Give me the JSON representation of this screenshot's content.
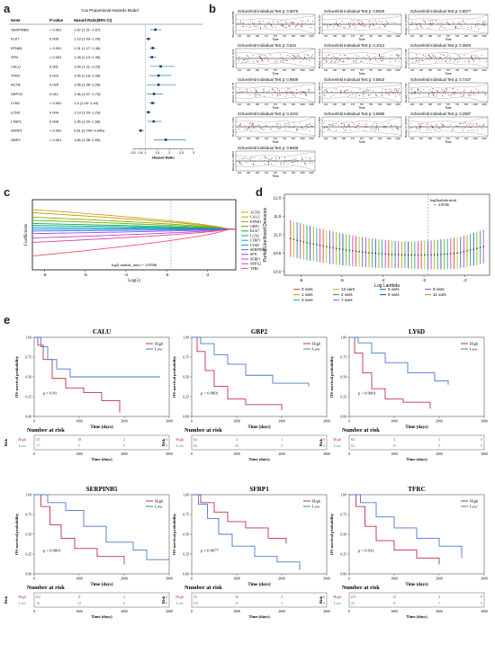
{
  "panels": {
    "a": "a",
    "b": "b",
    "c": "c",
    "d": "d",
    "e": "e"
  },
  "panel_a": {
    "title": "Cox Proportional Hazards Model",
    "headers": {
      "gene": "Gene",
      "p": "P-value",
      "hr": "Hazard Ratio(95% CI)"
    },
    "rows": [
      {
        "gene": "SERPINB5",
        "p": "< 0.001",
        "hr": "1.42 (1.21~1.67)",
        "est": 1.42,
        "lo": 1.21,
        "hi": 1.67
      },
      {
        "gene": "KLK7",
        "p": "0.006",
        "hr": "1.13 (1.03~1.24)",
        "est": 1.13,
        "lo": 1.03,
        "hi": 1.24
      },
      {
        "gene": "EFNB1",
        "p": "< 0.001",
        "hr": "1.31 (1.17~1.46)",
        "est": 1.31,
        "lo": 1.17,
        "hi": 1.46
      },
      {
        "gene": "SFN",
        "p": "< 0.001",
        "hr": "1.28 (1.13~1.45)",
        "est": 1.28,
        "lo": 1.13,
        "hi": 1.45
      },
      {
        "gene": "CALU",
        "p": "0.001",
        "hr": "1.64 (1.21~2.23)",
        "est": 1.64,
        "lo": 1.21,
        "hi": 2.23
      },
      {
        "gene": "TFRC",
        "p": "0.003",
        "hr": "1.55 (1.16~2.08)",
        "est": 1.55,
        "lo": 1.16,
        "hi": 2.08
      },
      {
        "gene": "ACTB",
        "p": "0.025",
        "hr": "1.55 (1.06~2.26)",
        "est": 1.55,
        "lo": 1.06,
        "hi": 2.26
      },
      {
        "gene": "SRPX2",
        "p": "0.011",
        "hr": "1.36 (1.07~1.73)",
        "est": 1.36,
        "lo": 1.07,
        "hi": 1.73
      },
      {
        "gene": "LY6D",
        "p": "< 0.001",
        "hr": "1.3 (1.16~1.44)",
        "est": 1.3,
        "lo": 1.16,
        "hi": 1.44
      },
      {
        "gene": "LCN2",
        "p": "0.009",
        "hr": "1.13 (1.03~1.23)",
        "est": 1.13,
        "lo": 1.03,
        "hi": 1.23
      },
      {
        "gene": "LTBP1",
        "p": "0.006",
        "hr": "1.35 (1.09~1.68)",
        "est": 1.35,
        "lo": 1.09,
        "hi": 1.68
      },
      {
        "gene": "SFRP1",
        "p": "< 0.001",
        "hr": "0.81 (0.709~0.946)",
        "est": 0.81,
        "lo": 0.709,
        "hi": 0.946
      },
      {
        "gene": "GBP2",
        "p": "< 0.001",
        "hr": "1.85 (1.36~2.69)",
        "est": 1.85,
        "lo": 1.36,
        "hi": 2.69
      }
    ],
    "xticks": [
      "0.5",
      "0.8",
      "1",
      "1.5",
      "2",
      "2.5",
      "3"
    ],
    "xlabel": "Hazard Ratio"
  },
  "panel_b": {
    "title_prefix": "Schoenfeld Individual Test p:",
    "xlabel": "Time",
    "xticks": [
      "120",
      "230",
      "380",
      "470",
      "570",
      "760",
      "930",
      "1300",
      "2100"
    ],
    "plots": [
      {
        "p": "0.5676",
        "ylabel": "Beta(t) for SERPINB5"
      },
      {
        "p": "0.5929",
        "ylabel": "Beta(t) for KLK7"
      },
      {
        "p": "0.6577",
        "ylabel": "Beta(t) for EFNB1"
      },
      {
        "p": "0.615",
        "ylabel": "Beta(t) for SFN"
      },
      {
        "p": "0.1012",
        "ylabel": "Beta(t) for CALU"
      },
      {
        "p": "0.3603",
        "ylabel": "Beta(t) for TFRC"
      },
      {
        "p": "0.9609",
        "ylabel": "Beta(t) for ACTB"
      },
      {
        "p": "0.5915",
        "ylabel": "Beta(t) for SRPX2"
      },
      {
        "p": "0.7107",
        "ylabel": "Beta(t) for LY6D"
      },
      {
        "p": "0.4342",
        "ylabel": "Beta(t) for LCN2"
      },
      {
        "p": "0.5886",
        "ylabel": "Beta(t) for LTBP1"
      },
      {
        "p": "0.2987",
        "ylabel": "Beta(t) for SFRP1"
      },
      {
        "p": "0.9509",
        "ylabel": "Beta(t) for GBP2"
      }
    ]
  },
  "panel_c": {
    "ylabel": "Coefficients",
    "xlabel": "Log(λ)",
    "xticks": [
      "-6",
      "-5",
      "-4",
      "-3",
      "-2"
    ],
    "annotation": "log(Lambda_min) = -2.8946",
    "legend": [
      {
        "name": "ACTB",
        "color": "#d4a017"
      },
      {
        "name": "CALU",
        "color": "#b8a000"
      },
      {
        "name": "EFNB1",
        "color": "#8aa800"
      },
      {
        "name": "GBP2",
        "color": "#5ab000"
      },
      {
        "name": "KLK7",
        "color": "#10b040"
      },
      {
        "name": "LCN2",
        "color": "#00b090"
      },
      {
        "name": "LTBP1",
        "color": "#00a8c0"
      },
      {
        "name": "LY6D",
        "color": "#1090e0"
      },
      {
        "name": "SERPINB5",
        "color": "#5070f0"
      },
      {
        "name": "SFN",
        "color": "#9050e8"
      },
      {
        "name": "SFRP1",
        "color": "#c040d0"
      },
      {
        "name": "SRPX2",
        "color": "#e040a0"
      },
      {
        "name": "TFRC",
        "color": "#f05070"
      }
    ]
  },
  "panel_d": {
    "ylabel": "Partial Likelihood Deviance",
    "xlabel": "Log Lambda",
    "yticks": [
      "10.0",
      "10.5",
      "11.0",
      "11.5",
      "12.0"
    ],
    "xticks": [
      "-6",
      "-5",
      "-4",
      "-3",
      "-2"
    ],
    "annotation": "log(lambda.min)\n= -2.8946",
    "legend": [
      {
        "label": "0 vars",
        "color": "#e74c3c"
      },
      {
        "label": "12 vars",
        "color": "#c0c020"
      },
      {
        "label": "5 vars",
        "color": "#2c7fb8"
      },
      {
        "label": "9 vars",
        "color": "#b04ac8"
      },
      {
        "label": "1 vars",
        "color": "#d0a000"
      },
      {
        "label": "2 vars",
        "color": "#20b060"
      },
      {
        "label": "6 vars",
        "color": "#3050e0"
      },
      {
        "label": "11 vars",
        "color": "#90b000"
      },
      {
        "label": "3 vars",
        "color": "#20b0a0"
      },
      {
        "label": "7 vars",
        "color": "#e040c0"
      }
    ]
  },
  "panel_e": {
    "ylabel": "OS survival probability",
    "xlabel": "Time (days)",
    "yticks": [
      "0.00",
      "0.25",
      "0.50",
      "0.75",
      "1.00"
    ],
    "xticks": [
      "0",
      "1000",
      "2000",
      "3000"
    ],
    "risk_title": "Number at risk",
    "risk_label": "Risk",
    "legend": {
      "high": "High",
      "low": "Low"
    },
    "colors": {
      "high": "#c0304a",
      "low": "#4a78d0"
    },
    "plots": [
      {
        "title": "CALU",
        "p": "p = 0.01",
        "high_risk": [
          "111",
          "18",
          "2",
          "0"
        ],
        "low_risk": [
          "17",
          "5",
          "0",
          "0"
        ],
        "high": [
          [
            0,
            1
          ],
          [
            80,
            0.9
          ],
          [
            200,
            0.72
          ],
          [
            400,
            0.48
          ],
          [
            700,
            0.36
          ],
          [
            1100,
            0.3
          ],
          [
            1500,
            0.2
          ],
          [
            1900,
            0.05
          ]
        ],
        "low": [
          [
            0,
            1
          ],
          [
            150,
            0.88
          ],
          [
            300,
            0.72
          ],
          [
            500,
            0.6
          ],
          [
            800,
            0.5
          ],
          [
            2800,
            0.5
          ]
        ]
      },
      {
        "title": "GBP2",
        "p": "p < 0.0001",
        "high_risk": [
          "62",
          "3",
          "1",
          "0"
        ],
        "low_risk": [
          "66",
          "20",
          "3",
          "0"
        ],
        "high": [
          [
            0,
            1
          ],
          [
            120,
            0.82
          ],
          [
            300,
            0.58
          ],
          [
            500,
            0.38
          ],
          [
            800,
            0.22
          ],
          [
            1200,
            0.15
          ],
          [
            2000,
            0.08
          ]
        ],
        "low": [
          [
            0,
            1
          ],
          [
            200,
            0.92
          ],
          [
            500,
            0.78
          ],
          [
            800,
            0.66
          ],
          [
            1200,
            0.52
          ],
          [
            1800,
            0.42
          ],
          [
            2600,
            0.38
          ]
        ]
      },
      {
        "title": "LY6D",
        "p": "p < 0.0001",
        "high_risk": [
          "65",
          "4",
          "2",
          "0"
        ],
        "low_risk": [
          "63",
          "19",
          "0",
          "0"
        ],
        "high": [
          [
            0,
            1
          ],
          [
            120,
            0.8
          ],
          [
            300,
            0.55
          ],
          [
            500,
            0.35
          ],
          [
            800,
            0.22
          ],
          [
            1200,
            0.18
          ],
          [
            1800,
            0.1
          ]
        ],
        "low": [
          [
            0,
            1
          ],
          [
            200,
            0.93
          ],
          [
            500,
            0.8
          ],
          [
            800,
            0.68
          ],
          [
            1300,
            0.55
          ],
          [
            1900,
            0.45
          ],
          [
            2200,
            0.4
          ]
        ]
      },
      {
        "title": "SERPINB5",
        "p": "p < 0.0001",
        "high_risk": [
          "112",
          "11",
          "2",
          "0"
        ],
        "low_risk": [
          "16",
          "12",
          "0",
          "0"
        ],
        "high": [
          [
            0,
            1
          ],
          [
            150,
            0.85
          ],
          [
            350,
            0.62
          ],
          [
            600,
            0.45
          ],
          [
            900,
            0.32
          ],
          [
            1400,
            0.22
          ],
          [
            2000,
            0.12
          ]
        ],
        "low": [
          [
            0,
            1
          ],
          [
            300,
            0.9
          ],
          [
            700,
            0.8
          ],
          [
            1100,
            0.6
          ],
          [
            1600,
            0.4
          ],
          [
            2200,
            0.3
          ],
          [
            2500,
            0.18
          ],
          [
            3000,
            0.18
          ]
        ]
      },
      {
        "title": "SFRP1",
        "p": "p = 0.0077",
        "high_risk": [
          "55",
          "16",
          "2",
          "0"
        ],
        "low_risk": [
          "123",
          "11",
          "3",
          "0"
        ],
        "high": [
          [
            0,
            1
          ],
          [
            200,
            0.9
          ],
          [
            500,
            0.78
          ],
          [
            800,
            0.66
          ],
          [
            1200,
            0.58
          ],
          [
            1700,
            0.45
          ],
          [
            2100,
            0.38
          ]
        ],
        "low": [
          [
            0,
            1
          ],
          [
            150,
            0.88
          ],
          [
            350,
            0.7
          ],
          [
            600,
            0.5
          ],
          [
            900,
            0.35
          ],
          [
            1400,
            0.22
          ],
          [
            1900,
            0.15
          ],
          [
            2400,
            0.05
          ]
        ]
      },
      {
        "title": "TFRC",
        "p": "p = 0.031",
        "high_risk": [
          "119",
          "12",
          "4",
          "0"
        ],
        "low_risk": [
          "25",
          "11",
          "1",
          "0"
        ],
        "high": [
          [
            0,
            1
          ],
          [
            150,
            0.85
          ],
          [
            350,
            0.6
          ],
          [
            600,
            0.42
          ],
          [
            1000,
            0.3
          ],
          [
            1500,
            0.2
          ],
          [
            2000,
            0.12
          ]
        ],
        "low": [
          [
            0,
            1
          ],
          [
            250,
            0.9
          ],
          [
            600,
            0.72
          ],
          [
            1000,
            0.58
          ],
          [
            1500,
            0.45
          ],
          [
            2000,
            0.35
          ],
          [
            2500,
            0.2
          ]
        ]
      }
    ]
  }
}
